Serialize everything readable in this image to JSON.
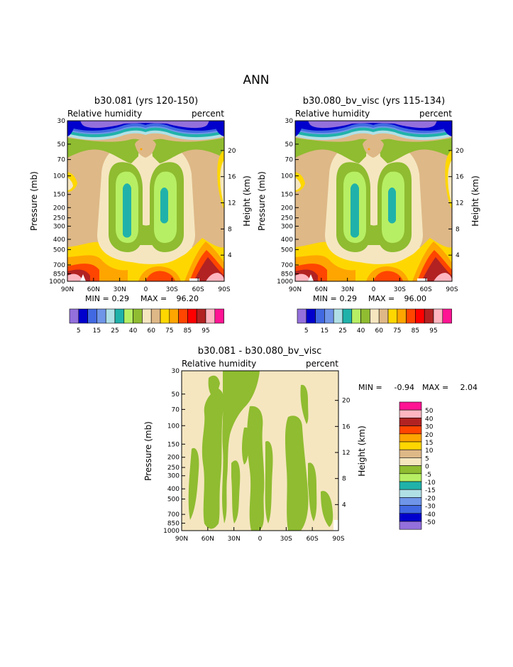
{
  "page": {
    "title": "ANN"
  },
  "chart_data": [
    {
      "type": "heatmap",
      "id": "panel1",
      "title": "b30.081 (yrs 120-150)",
      "subtitle_left": "Relative humidity",
      "subtitle_right": "percent",
      "ylabel": "Pressure (mb)",
      "y2label": "Height (km)",
      "x_ticks": [
        "90N",
        "60N",
        "30N",
        "0",
        "30S",
        "60S",
        "90S"
      ],
      "p_ticks": [
        "30",
        "50",
        "70",
        "100",
        "150",
        "200",
        "250",
        "300",
        "400",
        "500",
        "700",
        "850",
        "1000"
      ],
      "p_values": [
        30,
        50,
        70,
        100,
        150,
        200,
        250,
        300,
        400,
        500,
        700,
        850,
        1000
      ],
      "h_ticks": [
        "20",
        "16",
        "12",
        "8",
        "4"
      ],
      "h_values": [
        20,
        16,
        12,
        8,
        4
      ],
      "min_label": "MIN =",
      "min_value": "0.29",
      "max_label": "MAX =",
      "max_value": "96.20"
    },
    {
      "type": "heatmap",
      "id": "panel2",
      "title": "b30.080_bv_visc (yrs 115-134)",
      "subtitle_left": "Relative humidity",
      "subtitle_right": "percent",
      "ylabel": "Pressure (mb)",
      "y2label": "Height (km)",
      "x_ticks": [
        "90N",
        "60N",
        "30N",
        "0",
        "30S",
        "60S",
        "90S"
      ],
      "p_ticks": [
        "30",
        "50",
        "70",
        "100",
        "150",
        "200",
        "250",
        "300",
        "400",
        "500",
        "700",
        "850",
        "1000"
      ],
      "p_values": [
        30,
        50,
        70,
        100,
        150,
        200,
        250,
        300,
        400,
        500,
        700,
        850,
        1000
      ],
      "h_ticks": [
        "20",
        "16",
        "12",
        "8",
        "4"
      ],
      "h_values": [
        20,
        16,
        12,
        8,
        4
      ],
      "min_label": "MIN =",
      "min_value": "0.29",
      "max_label": "MAX =",
      "max_value": "96.00"
    },
    {
      "type": "heatmap",
      "id": "panel3",
      "title": "b30.081 - b30.080_bv_visc",
      "subtitle_left": "Relative humidity",
      "subtitle_right": "percent",
      "ylabel": "Pressure (mb)",
      "y2label": "Height (km)",
      "x_ticks": [
        "90N",
        "60N",
        "30N",
        "0",
        "30S",
        "60S",
        "90S"
      ],
      "p_ticks": [
        "30",
        "50",
        "70",
        "100",
        "150",
        "200",
        "250",
        "300",
        "400",
        "500",
        "700",
        "850",
        "1000"
      ],
      "p_values": [
        30,
        50,
        70,
        100,
        150,
        200,
        250,
        300,
        400,
        500,
        700,
        850,
        1000
      ],
      "h_ticks": [
        "20",
        "16",
        "12",
        "8",
        "4"
      ],
      "h_values": [
        20,
        16,
        12,
        8,
        4
      ],
      "min_label": "MIN =",
      "min_value": "-0.94",
      "max_label": "MAX =",
      "max_value": "2.04"
    }
  ],
  "legend_abs": {
    "colors": [
      "#9370db",
      "#0000cd",
      "#4169e1",
      "#6f95e8",
      "#b0e0e6",
      "#20b2aa",
      "#b7ef64",
      "#8fbc30",
      "#f5e6c0",
      "#deb887",
      "#ffd700",
      "#ffa500",
      "#ff4500",
      "#ff0000",
      "#b22222",
      "#ffb6c1",
      "#ff1493"
    ],
    "labels": [
      "5",
      "15",
      "25",
      "40",
      "60",
      "75",
      "85",
      "95"
    ]
  },
  "legend_diff": {
    "colors": [
      "#ff1493",
      "#ffb6c1",
      "#b22222",
      "#ff4500",
      "#ffa500",
      "#ffd700",
      "#deb887",
      "#f5e6c0",
      "#8fbc30",
      "#b7ef64",
      "#20b2aa",
      "#b0e0e6",
      "#6f95e8",
      "#4169e1",
      "#0000cd",
      "#9370db"
    ],
    "labels": [
      "50",
      "40",
      "30",
      "20",
      "15",
      "10",
      "5",
      "0",
      "-5",
      "-10",
      "-15",
      "-20",
      "-30",
      "-40",
      "-50"
    ]
  }
}
